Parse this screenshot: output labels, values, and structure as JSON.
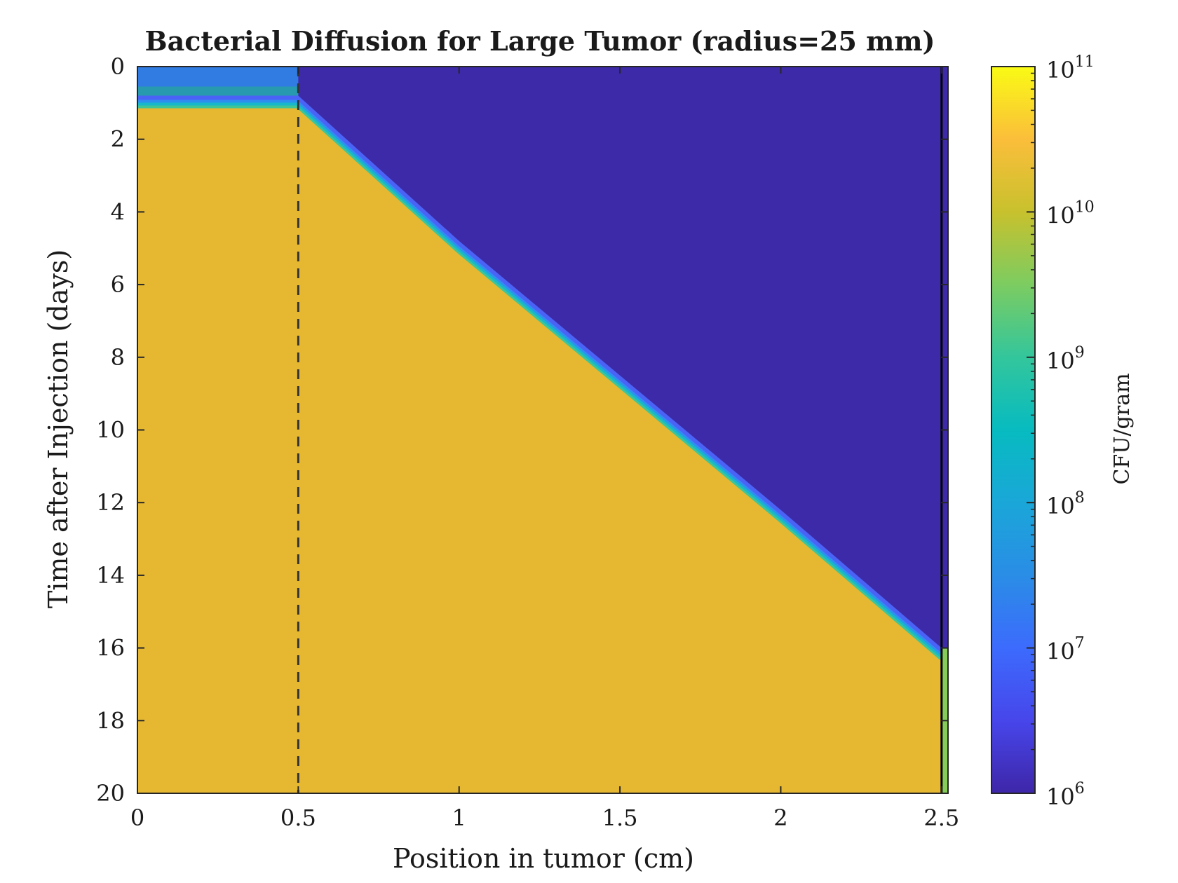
{
  "chart_data": {
    "type": "heatmap",
    "title": "Bacterial Diffusion for Large Tumor (radius=25 mm)",
    "xlabel": "Position in tumor (cm)",
    "ylabel": "Time after Injection (days)",
    "xlim": [
      0,
      2.52
    ],
    "ylim": [
      0,
      20
    ],
    "y_direction": "reversed",
    "xticks": [
      0,
      0.5,
      1,
      1.5,
      2,
      2.5
    ],
    "xtick_labels": [
      "0",
      "0.5",
      "1",
      "1.5",
      "2",
      "2.5"
    ],
    "yticks": [
      0,
      2,
      4,
      6,
      8,
      10,
      12,
      14,
      16,
      18,
      20
    ],
    "ytick_labels": [
      "0",
      "2",
      "4",
      "6",
      "8",
      "10",
      "12",
      "14",
      "16",
      "18",
      "20"
    ],
    "colorbar": {
      "label": "CFU/gram",
      "scale": "log",
      "range": [
        1000000,
        100000000000
      ],
      "tick_bases": [
        "10",
        "10",
        "10",
        "10",
        "10",
        "10"
      ],
      "tick_exponents": [
        "6",
        "7",
        "8",
        "9",
        "10",
        "11"
      ],
      "colormap": "parula"
    },
    "regions": [
      {
        "description": "high density (~2×10^10 CFU/gram)",
        "color": "#e6b832"
      },
      {
        "description": "low density (~10^6 CFU/gram)",
        "color": "#3c2aa8"
      }
    ],
    "front_boundary": {
      "x": [
        0,
        0.5,
        0.65,
        1.0,
        1.5,
        2.0,
        2.5
      ],
      "y": [
        0.8,
        0.8,
        2.0,
        4.8,
        8.5,
        12.2,
        16.0
      ]
    },
    "reference_lines": [
      {
        "x": 0.5,
        "style": "dashed",
        "color": "#333333"
      },
      {
        "x": 2.5,
        "style": "solid",
        "color": "#000000"
      }
    ],
    "grid": false
  }
}
